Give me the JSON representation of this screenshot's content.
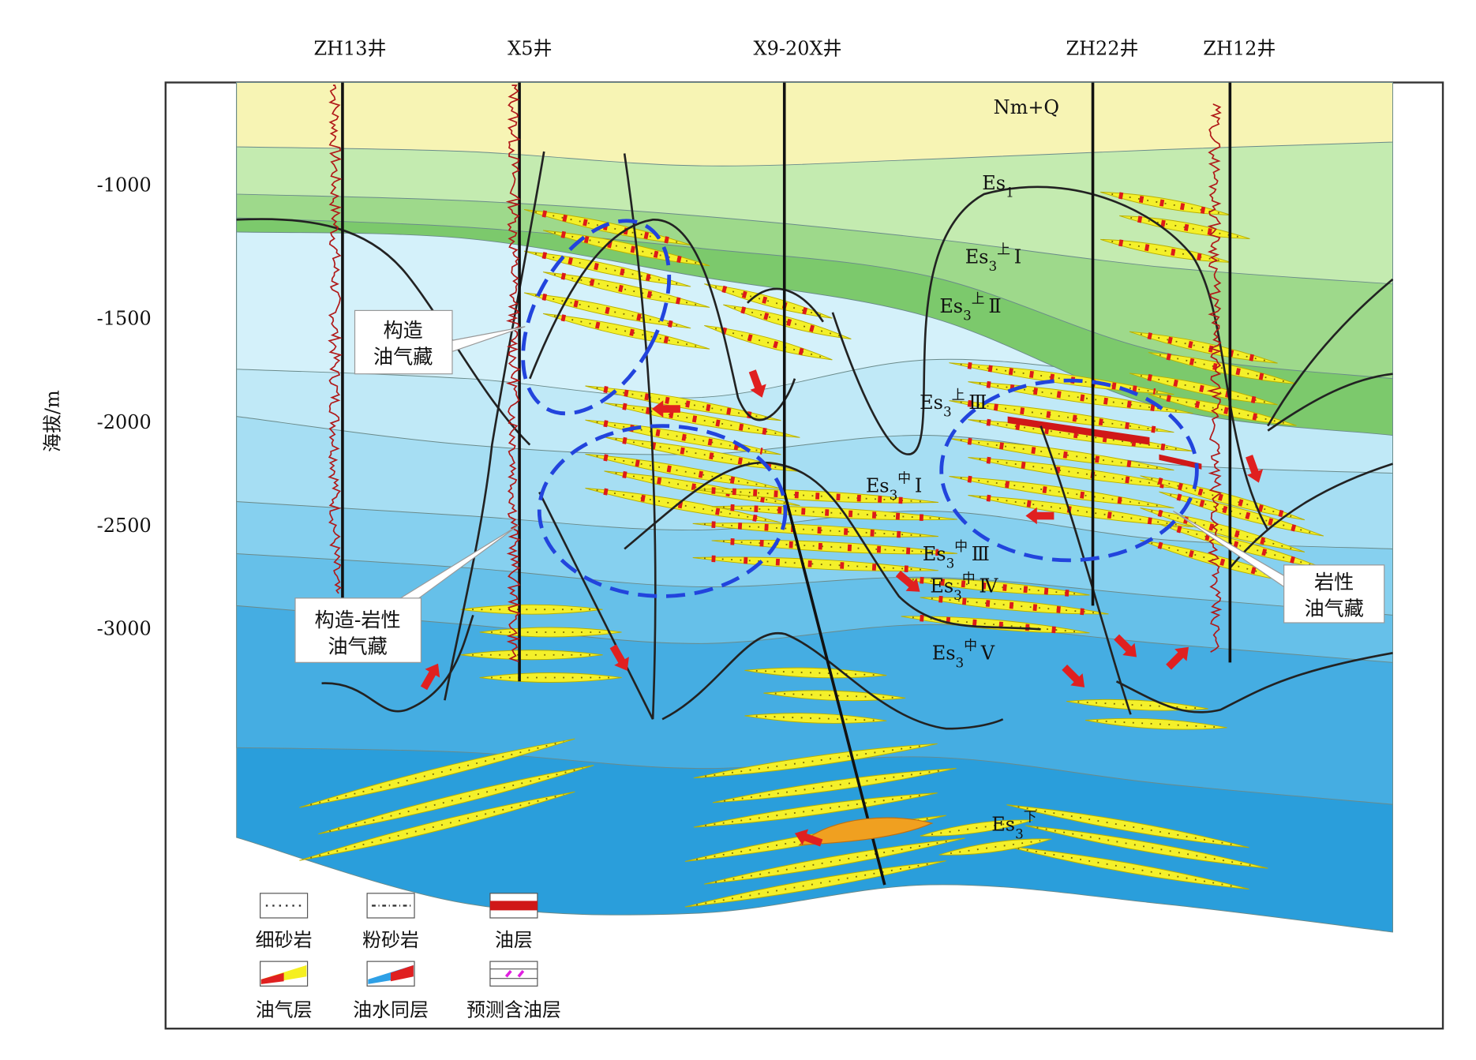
{
  "wells": [
    "ZH13井",
    "X5井",
    "X9-20X井",
    "ZH22井",
    "ZH12井"
  ],
  "axis": {
    "label": "海拔/m",
    "ticks": [
      -1000,
      -1500,
      -2000,
      -2500,
      -3000
    ]
  },
  "layers": [
    {
      "base": "Nm+Q"
    },
    {
      "base": "Es",
      "sub": "1"
    },
    {
      "base": "Es",
      "sub": "3",
      "sup": "上",
      "suffix": "Ⅰ"
    },
    {
      "base": "Es",
      "sub": "3",
      "sup": "上",
      "suffix": "Ⅱ"
    },
    {
      "base": "Es",
      "sub": "3",
      "sup": "上",
      "suffix": "Ⅲ"
    },
    {
      "base": "Es",
      "sub": "3",
      "sup": "中",
      "suffix": "Ⅰ"
    },
    {
      "base": "Es",
      "sub": "3",
      "sup": "中",
      "suffix": "Ⅲ"
    },
    {
      "base": "Es",
      "sub": "3",
      "sup": "中",
      "suffix": "Ⅳ"
    },
    {
      "base": "Es",
      "sub": "3",
      "sup": "中",
      "suffix": "Ⅴ"
    },
    {
      "base": "Es",
      "sub": "3",
      "sup": "下"
    }
  ],
  "callouts": [
    [
      "构造",
      "油气藏"
    ],
    [
      "构造-岩性",
      "油气藏"
    ],
    [
      "岩性",
      "油气藏"
    ]
  ],
  "legend": [
    "细砂岩",
    "粉砂岩",
    "油层",
    "油气层",
    "油水同层",
    "预测含油层"
  ]
}
